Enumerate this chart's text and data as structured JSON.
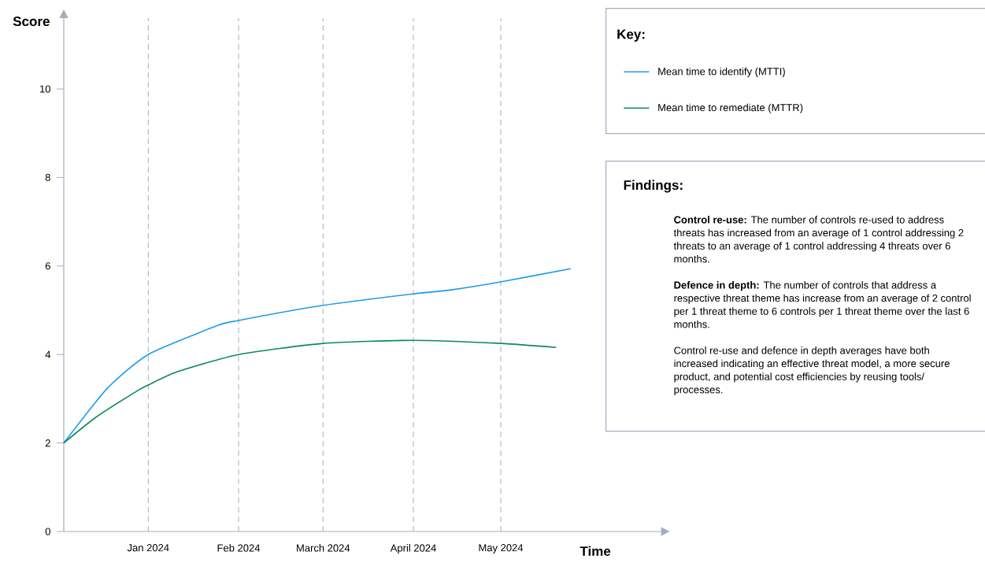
{
  "chart_data": {
    "type": "line",
    "xlabel": "Time",
    "ylabel": "Score",
    "legend_title": "Key:",
    "xlim": [
      "2023-12-03",
      "2024-06-25"
    ],
    "ylim": [
      0,
      11.6
    ],
    "xticks": [
      {
        "value": "2024-01-01",
        "label": "Jan 2024"
      },
      {
        "value": "2024-02-01",
        "label": "Feb 2024"
      },
      {
        "value": "2024-03-01",
        "label": "March 2024"
      },
      {
        "value": "2024-04-01",
        "label": "April 2024"
      },
      {
        "value": "2024-05-01",
        "label": "May 2024"
      }
    ],
    "yticks": [
      0,
      2,
      4,
      6,
      8,
      10
    ],
    "grid": "x",
    "legend": "top right",
    "marker": "none",
    "line_style": "solid",
    "series": [
      {
        "name": "Mean time to identify (MTTI)",
        "color": "#1e9bf0",
        "x": [
          "2023-12-03",
          "2023-12-18",
          "2024-01-01",
          "2024-01-25",
          "2024-02-01",
          "2024-03-01",
          "2024-04-01",
          "2024-04-14",
          "2024-05-01",
          "2024-05-25"
        ],
        "values": [
          2,
          3.24,
          4.0,
          4.66,
          4.77,
          5.11,
          5.37,
          5.46,
          5.64,
          5.94
        ]
      },
      {
        "name": "Mean time to remediate (MTTR)",
        "color": "#0e8a5a",
        "x": [
          "2023-12-03",
          "2023-12-14",
          "2023-12-28",
          "2024-01-01",
          "2024-01-11",
          "2024-02-01",
          "2024-03-01",
          "2024-04-01",
          "2024-05-01",
          "2024-05-20"
        ],
        "values": [
          2,
          2.58,
          3.17,
          3.31,
          3.61,
          4.0,
          4.25,
          4.32,
          4.25,
          4.16
        ]
      }
    ],
    "annotations": [
      "Findings:",
      "**Control re-use:** The number of controls re-used to address threats has increased from an average of 1 control addressing 2 threats to an average of 1 control addressing 4 threats over 6 months.",
      "**Defence in depth:** The number of controls that address a respective threat theme has increase from an average of 2 control per 1 threat theme to 6 controls per 1 threat theme over the last 6 months.",
      "Control re-use and defence in depth averages have both increased indicating an effective threat model, a more secure product, and potential cost efficiencies by reusing tools/ processes."
    ]
  }
}
